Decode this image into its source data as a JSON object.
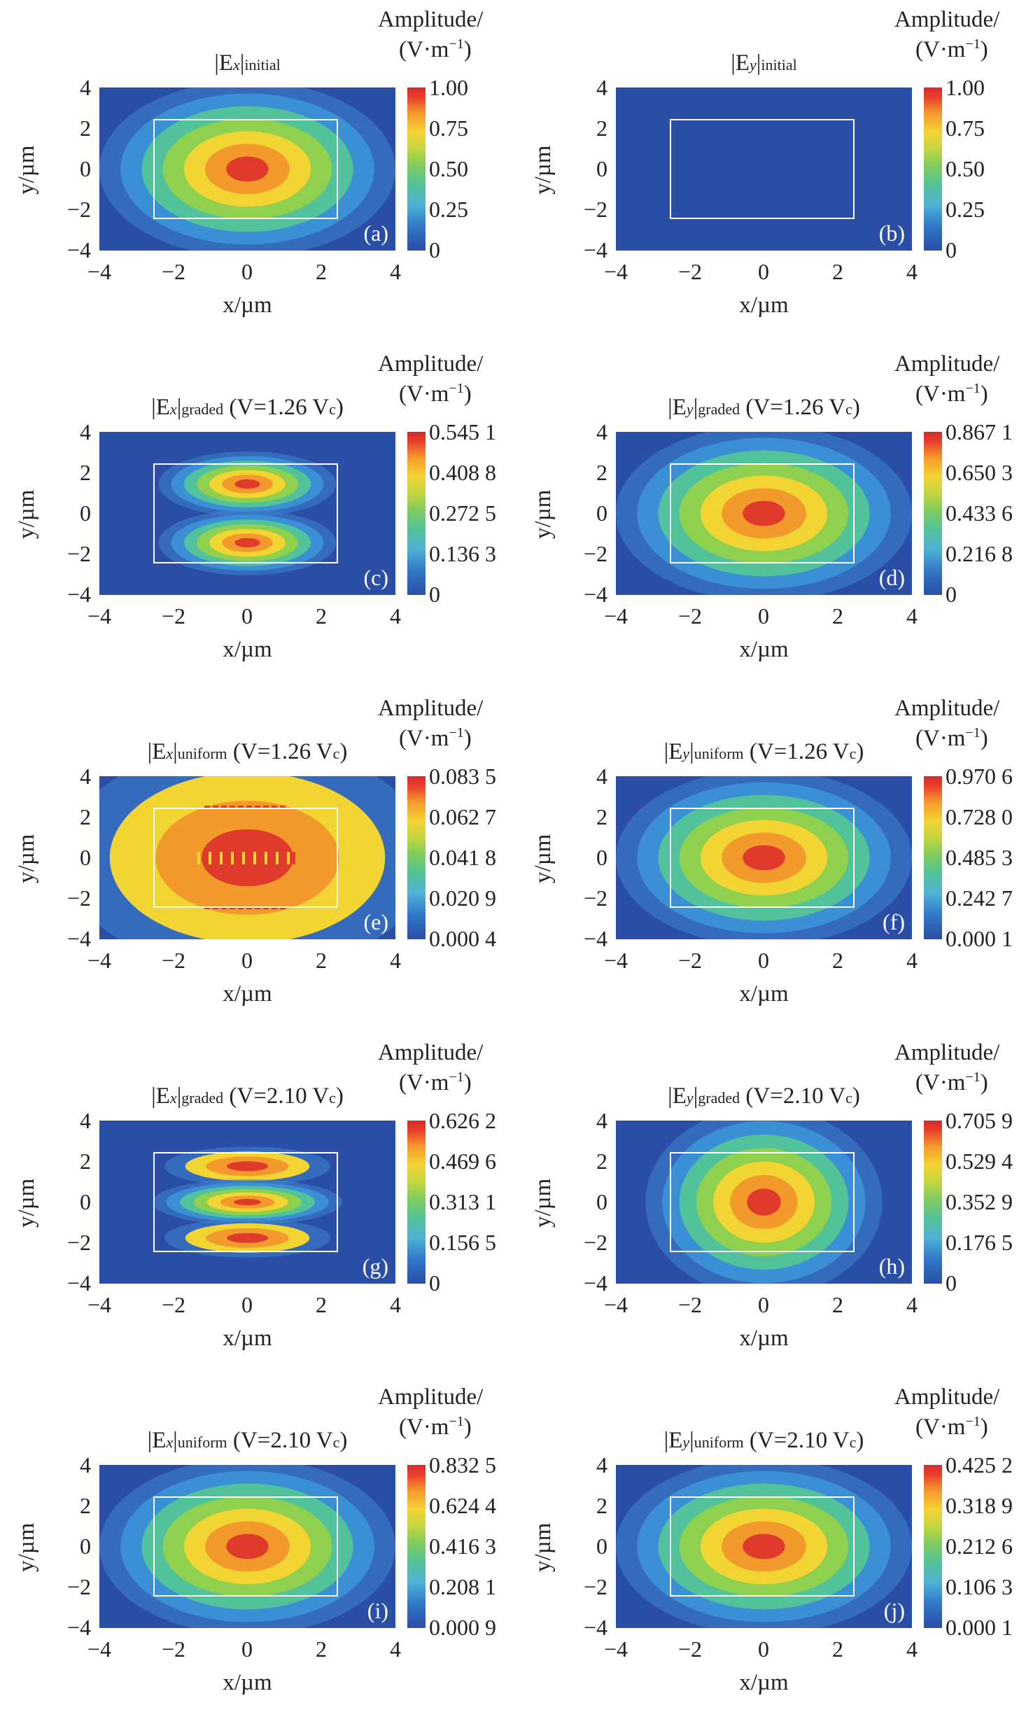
{
  "figure": {
    "ylabel": "y/µm",
    "xlabel": "x/µm",
    "cbar_unit_line1": "Amplitude/",
    "cbar_unit_line2": "(V·m",
    "cbar_unit_exp": "−1",
    "cbar_unit_close": ")",
    "xticks": [
      "−4",
      "−2",
      "0",
      "2",
      "4"
    ],
    "yticks": [
      "4",
      "2",
      "0",
      "−2",
      "−4"
    ]
  },
  "chart_data": [
    {
      "type": "heatmap",
      "panel": "(a)",
      "field": "|E",
      "comp": "x",
      "sub": "initial",
      "condition": "",
      "ctick": [
        "1.00",
        "0.75",
        "0.50",
        "0.25",
        "0"
      ],
      "pattern": "center",
      "xlim": [
        -4,
        4
      ],
      "ylim": [
        -4,
        4
      ]
    },
    {
      "type": "heatmap",
      "panel": "(b)",
      "field": "|E",
      "comp": "y",
      "sub": "initial",
      "condition": "",
      "ctick": [
        "1.00",
        "0.75",
        "0.50",
        "0.25",
        "0"
      ],
      "pattern": "none",
      "xlim": [
        -4,
        4
      ],
      "ylim": [
        -4,
        4
      ]
    },
    {
      "type": "heatmap",
      "panel": "(c)",
      "field": "|E",
      "comp": "x",
      "sub": "graded",
      "condition": " (V=1.26 V",
      "cond_sub": "c",
      "ctick": [
        "0.545 1",
        "0.408 8",
        "0.272 5",
        "0.136 3",
        "0"
      ],
      "pattern": "twolobes",
      "xlim": [
        -4,
        4
      ],
      "ylim": [
        -4,
        4
      ]
    },
    {
      "type": "heatmap",
      "panel": "(d)",
      "field": "|E",
      "comp": "y",
      "sub": "graded",
      "condition": " (V=1.26 V",
      "cond_sub": "c",
      "ctick": [
        "0.867 1",
        "0.650 3",
        "0.433 6",
        "0.216 8",
        "0"
      ],
      "pattern": "center",
      "xlim": [
        -4,
        4
      ],
      "ylim": [
        -4,
        4
      ]
    },
    {
      "type": "heatmap",
      "panel": "(e)",
      "field": "|E",
      "comp": "x",
      "sub": "uniform",
      "condition": " (V=1.26 V",
      "cond_sub": "c",
      "ctick": [
        "0.083 5",
        "0.062 7",
        "0.041 8",
        "0.020 9",
        "0.000 4"
      ],
      "pattern": "noisy",
      "xlim": [
        -4,
        4
      ],
      "ylim": [
        -4,
        4
      ]
    },
    {
      "type": "heatmap",
      "panel": "(f)",
      "field": "|E",
      "comp": "y",
      "sub": "uniform",
      "condition": " (V=1.26 V",
      "cond_sub": "c",
      "ctick": [
        "0.970 6",
        "0.728 0",
        "0.485 3",
        "0.242 7",
        "0.000 1"
      ],
      "pattern": "center",
      "xlim": [
        -4,
        4
      ],
      "ylim": [
        -4,
        4
      ]
    },
    {
      "type": "heatmap",
      "panel": "(g)",
      "field": "|E",
      "comp": "x",
      "sub": "graded",
      "condition": " (V=2.10 V",
      "cond_sub": "c",
      "ctick": [
        "0.626 2",
        "0.469 6",
        "0.313 1",
        "0.156 5",
        "0"
      ],
      "pattern": "threelobes",
      "xlim": [
        -4,
        4
      ],
      "ylim": [
        -4,
        4
      ]
    },
    {
      "type": "heatmap",
      "panel": "(h)",
      "field": "|E",
      "comp": "y",
      "sub": "graded",
      "condition": " (V=2.10 V",
      "cond_sub": "c",
      "ctick": [
        "0.705 9",
        "0.529 4",
        "0.352 9",
        "0.176 5",
        "0"
      ],
      "pattern": "tall",
      "xlim": [
        -4,
        4
      ],
      "ylim": [
        -4,
        4
      ]
    },
    {
      "type": "heatmap",
      "panel": "(i)",
      "field": "|E",
      "comp": "x",
      "sub": "uniform",
      "condition": " (V=2.10 V",
      "cond_sub": "c",
      "ctick": [
        "0.832 5",
        "0.624 4",
        "0.416 3",
        "0.208 1",
        "0.000 9"
      ],
      "pattern": "center",
      "xlim": [
        -4,
        4
      ],
      "ylim": [
        -4,
        4
      ]
    },
    {
      "type": "heatmap",
      "panel": "(j)",
      "field": "|E",
      "comp": "y",
      "sub": "uniform",
      "condition": " (V=2.10 V",
      "cond_sub": "c",
      "ctick": [
        "0.425 2",
        "0.318 9",
        "0.212 6",
        "0.106 3",
        "0.000 1"
      ],
      "pattern": "center",
      "xlim": [
        -4,
        4
      ],
      "ylim": [
        -4,
        4
      ]
    }
  ]
}
